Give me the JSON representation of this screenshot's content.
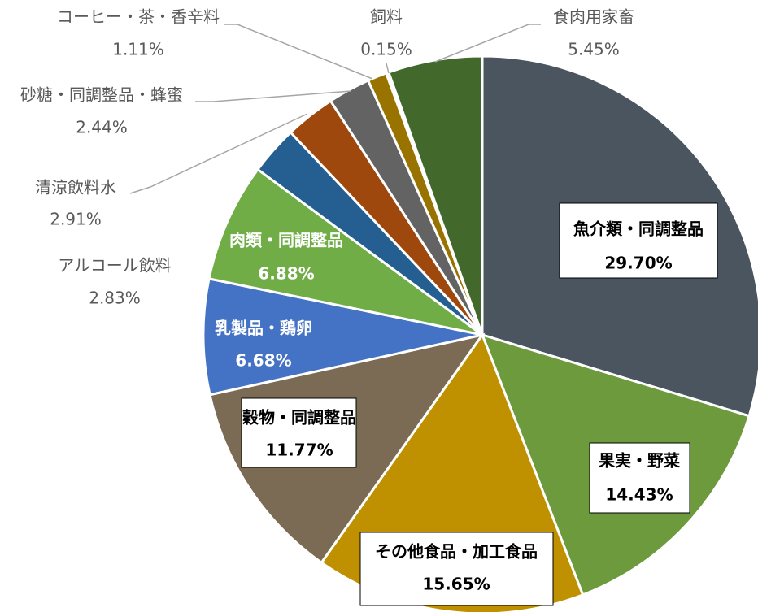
{
  "chart_data": {
    "type": "pie",
    "categories": [
      "魚介類・同調整品",
      "果実・野菜",
      "その他食品・加工食品",
      "穀物・同調整品",
      "乳製品・鶏卵",
      "肉類・同調整品",
      "アルコール飲料",
      "清涼飲料水",
      "砂糖・同調整品・蜂蜜",
      "コーヒー・茶・香辛料",
      "飼料",
      "食肉用家畜"
    ],
    "values": [
      29.7,
      14.43,
      15.65,
      11.77,
      6.68,
      6.88,
      2.83,
      2.91,
      2.44,
      1.11,
      0.15,
      5.45
    ],
    "value_labels": [
      "29.70%",
      "14.43%",
      "15.65%",
      "11.77%",
      "6.68%",
      "6.88%",
      "2.83%",
      "2.91%",
      "2.44%",
      "1.11%",
      "0.15%",
      "5.45%"
    ],
    "colors": [
      "#4b5560",
      "#6d9a3c",
      "#bf9000",
      "#7b6b55",
      "#4472c4",
      "#70ad47",
      "#255e91",
      "#9e480e",
      "#636363",
      "#997300",
      "#e8e8e8",
      "#43682b"
    ]
  }
}
